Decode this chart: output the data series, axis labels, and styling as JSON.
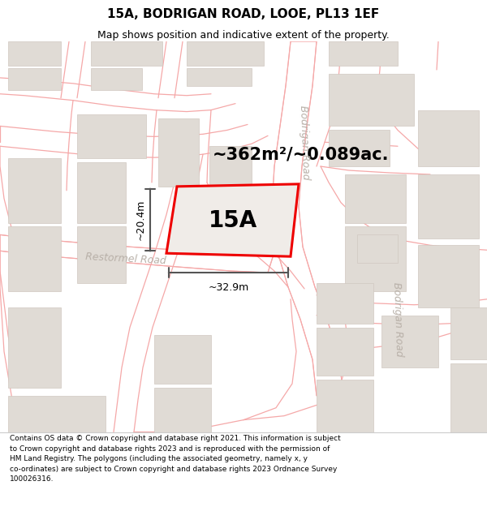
{
  "title_line1": "15A, BODRIGAN ROAD, LOOE, PL13 1EF",
  "title_line2": "Map shows position and indicative extent of the property.",
  "area_text": "~362m²/~0.089ac.",
  "label_15A": "15A",
  "dim_width": "~32.9m",
  "dim_height": "~20.4m",
  "road_label_restormel": "Restormel Road",
  "road_label_bodrigan1": "Bodrigan Road",
  "road_label_bodrigan2": "Bodrigan Road",
  "footer_text": "Contains OS data © Crown copyright and database right 2021. This information is subject\nto Crown copyright and database rights 2023 and is reproduced with the permission of\nHM Land Registry. The polygons (including the associated geometry, namely x, y\nco-ordinates) are subject to Crown copyright and database rights 2023 Ordnance Survey\n100026316.",
  "map_bg": "#f7f5f2",
  "road_fill": "#ffffff",
  "building_fill": "#e0dbd5",
  "building_edge": "#d0c8c0",
  "highlight_fill": "#f0ece8",
  "highlight_edge": "#ee0000",
  "road_line_color": "#f5a8a8",
  "dim_color": "#555555",
  "footer_bg": "#ffffff",
  "title_fs": 11,
  "subtitle_fs": 9,
  "area_fs": 15,
  "label_fs": 20,
  "dim_fs": 9,
  "road_fs": 9,
  "footer_fs": 6.5
}
